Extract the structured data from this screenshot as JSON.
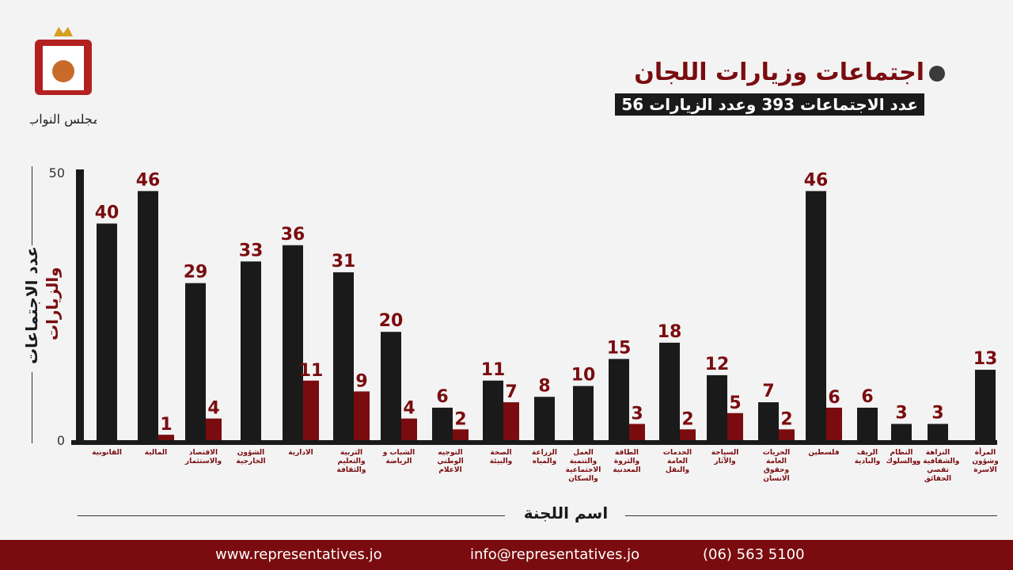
{
  "header": {
    "title": "اجتماعات وزيارات اللجان",
    "subtitle": "عدد الاجتماعات 393 وعدد الزيارات 56",
    "logo_text": "مجلس النواب"
  },
  "chart_data": {
    "type": "bar",
    "xlabel": "اسم اللجنة",
    "ylabel_line1": "عدد الاجتماعات",
    "ylabel_line2": "والزيارات",
    "ylim": [
      0,
      50
    ],
    "yticks": [
      "0",
      "50"
    ],
    "categories": [
      "القانونية",
      "المالية",
      "الاقتصاد والاستثمار",
      "الشؤون الخارجية",
      "الادارية",
      "التربية والتعليم والثقافة",
      "الشباب و الرياضة",
      "التوجيه الوطني الاعلام",
      "الصحة والبيئة",
      "الزراعة والمياه",
      "العمل والتنمية الاجتماعية والسكان",
      "الطاقة والثروة المعدنية",
      "الخدمات العامة والنقل",
      "السياحة والآثار",
      "الحريات العامة وحقوق الانسان",
      "فلسطين",
      "الريف والبادية",
      "النظام والسلوك",
      "النزاهة والشفافية و تقصي الحقائق",
      "المرأة وشؤون الاسرة"
    ],
    "series": [
      {
        "name": "الاجتماعات",
        "color": "#1a1a1a",
        "values": [
          40,
          46,
          29,
          33,
          36,
          31,
          20,
          6,
          11,
          8,
          10,
          15,
          18,
          12,
          7,
          46,
          6,
          3,
          3,
          13
        ]
      },
      {
        "name": "الزيارات",
        "color": "#7a0c0f",
        "values": [
          null,
          1,
          4,
          null,
          11,
          9,
          4,
          2,
          7,
          null,
          null,
          3,
          2,
          5,
          2,
          6,
          null,
          null,
          null,
          null
        ]
      }
    ]
  },
  "footer": {
    "website": "www.representatives.jo",
    "email": "info@representatives.jo",
    "phone": "(06) 563 5100"
  }
}
